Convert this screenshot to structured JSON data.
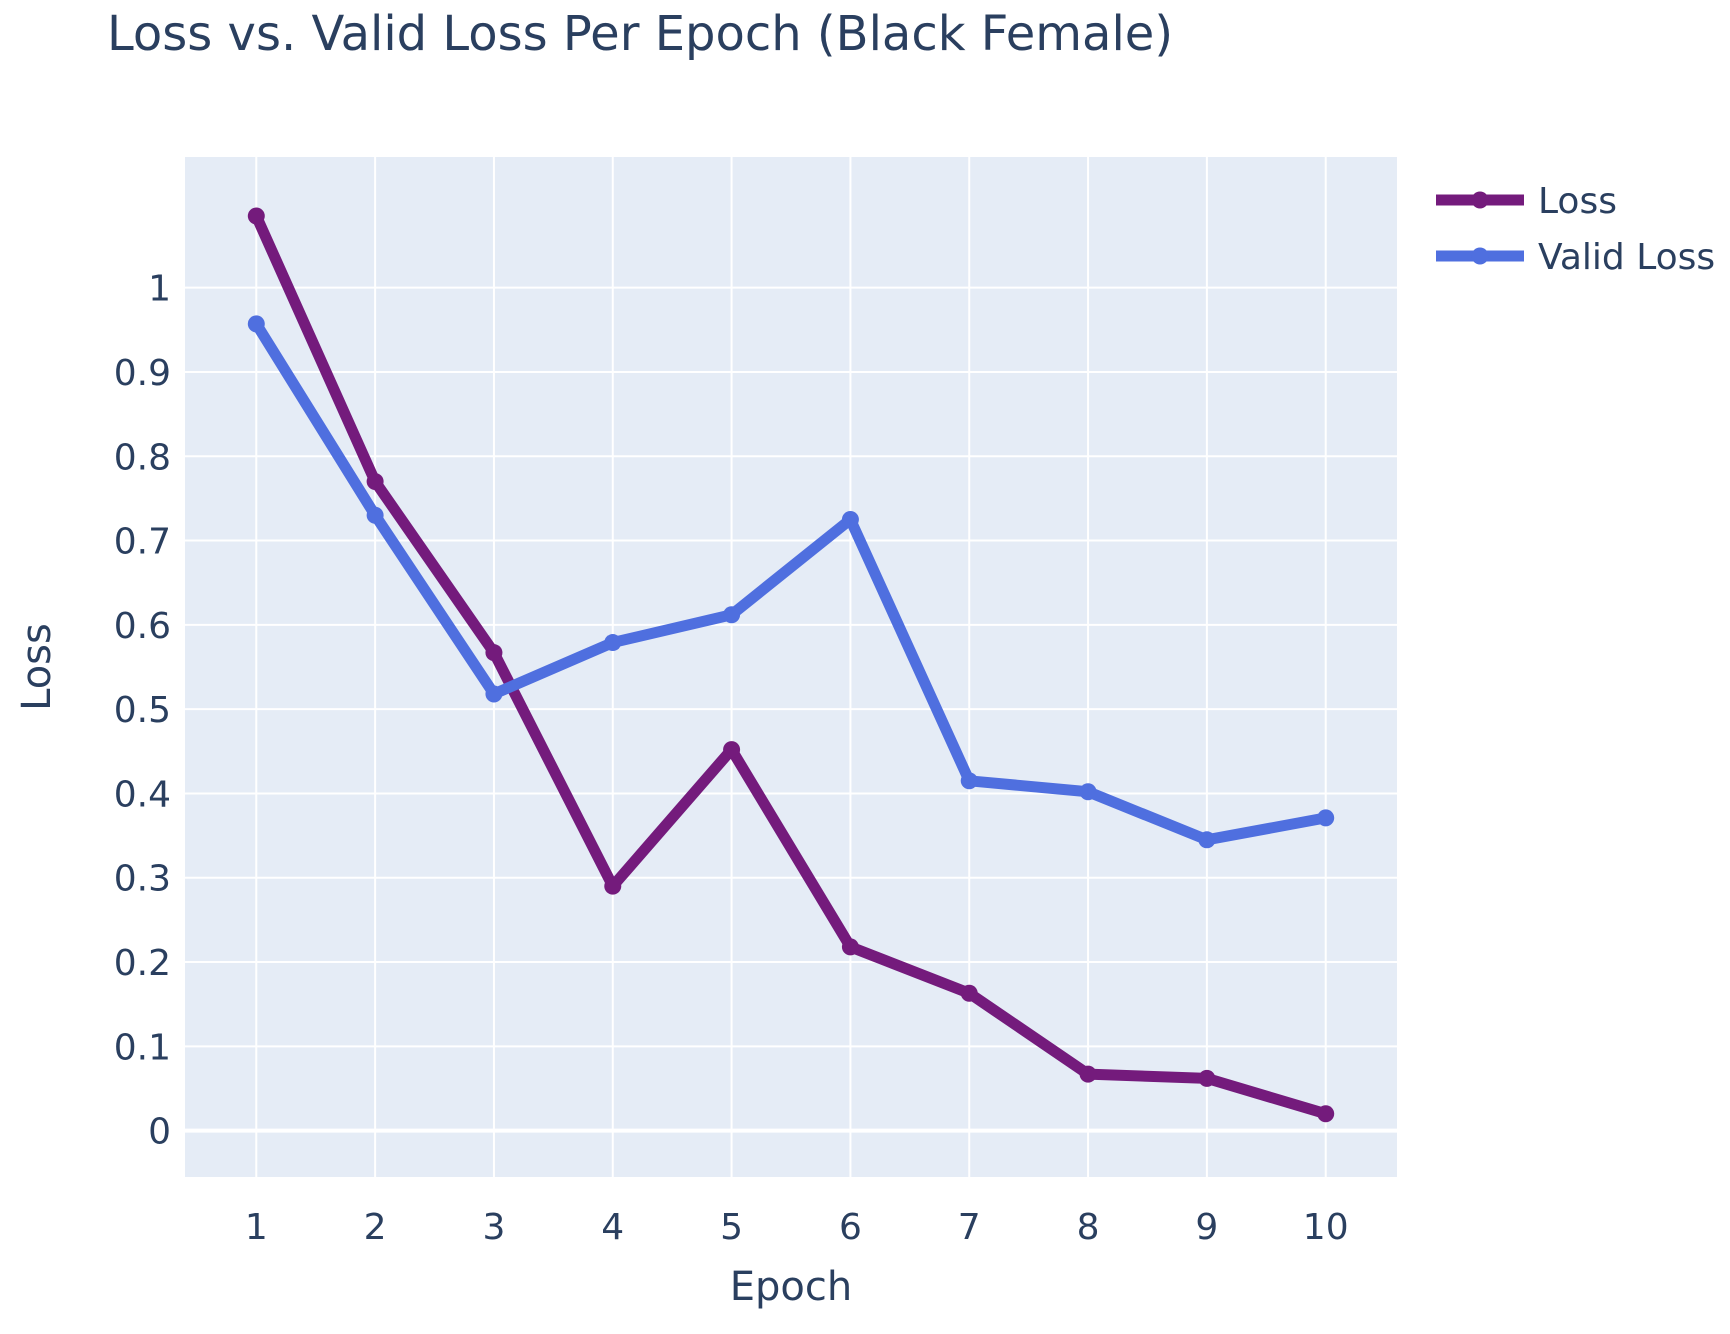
{
  "chart_data": {
    "type": "line",
    "title": "Loss vs. Valid Loss Per Epoch (Black Female)",
    "xlabel": "Epoch",
    "ylabel": "Loss",
    "x": [
      1,
      2,
      3,
      4,
      5,
      6,
      7,
      8,
      9,
      10
    ],
    "x_ticks": [
      "1",
      "2",
      "3",
      "4",
      "5",
      "6",
      "7",
      "8",
      "9",
      "10"
    ],
    "y_ticks": [
      "0",
      "0.1",
      "0.2",
      "0.3",
      "0.4",
      "0.5",
      "0.6",
      "0.7",
      "0.8",
      "0.9",
      "1"
    ],
    "xlim": [
      0.4,
      10.6
    ],
    "ylim": [
      -0.055,
      1.155
    ],
    "grid": true,
    "legend_position": "top-right outside",
    "series": [
      {
        "name": "Loss",
        "color": "#741b7c",
        "values": [
          1.085,
          0.77,
          0.567,
          0.29,
          0.452,
          0.218,
          0.163,
          0.067,
          0.062,
          0.02
        ]
      },
      {
        "name": "Valid Loss",
        "color": "#4f6fdf",
        "values": [
          0.957,
          0.73,
          0.518,
          0.579,
          0.612,
          0.725,
          0.415,
          0.402,
          0.345,
          0.371
        ]
      }
    ]
  },
  "colors": {
    "plot_background": "#e5ecf6",
    "grid": "#ffffff",
    "text": "#2a3f5f"
  }
}
